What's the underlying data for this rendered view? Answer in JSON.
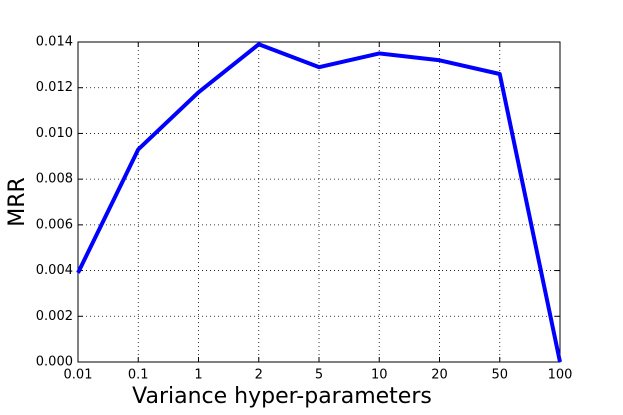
{
  "chart_data": {
    "type": "line",
    "xlabel": "Variance hyper-parameters",
    "ylabel": "MRR",
    "categories": [
      "0.01",
      "0.1",
      "1",
      "2",
      "5",
      "10",
      "20",
      "50",
      "100"
    ],
    "series": [
      {
        "name": "MRR",
        "color": "#0000ff",
        "values": [
          0.0039,
          0.0093,
          0.0118,
          0.0139,
          0.0129,
          0.0135,
          0.0132,
          0.0126,
          0
        ]
      }
    ],
    "ylim": [
      0,
      0.014
    ],
    "yticks": [
      {
        "value": 0,
        "label": "0.000"
      },
      {
        "value": 0.002,
        "label": "0.002"
      },
      {
        "value": 0.004,
        "label": "0.004"
      },
      {
        "value": 0.006,
        "label": "0.006"
      },
      {
        "value": 0.008,
        "label": "0.008"
      },
      {
        "value": 0.01,
        "label": "0.010"
      },
      {
        "value": 0.012,
        "label": "0.012"
      },
      {
        "value": 0.014,
        "label": "0.014"
      }
    ],
    "grid": true
  }
}
